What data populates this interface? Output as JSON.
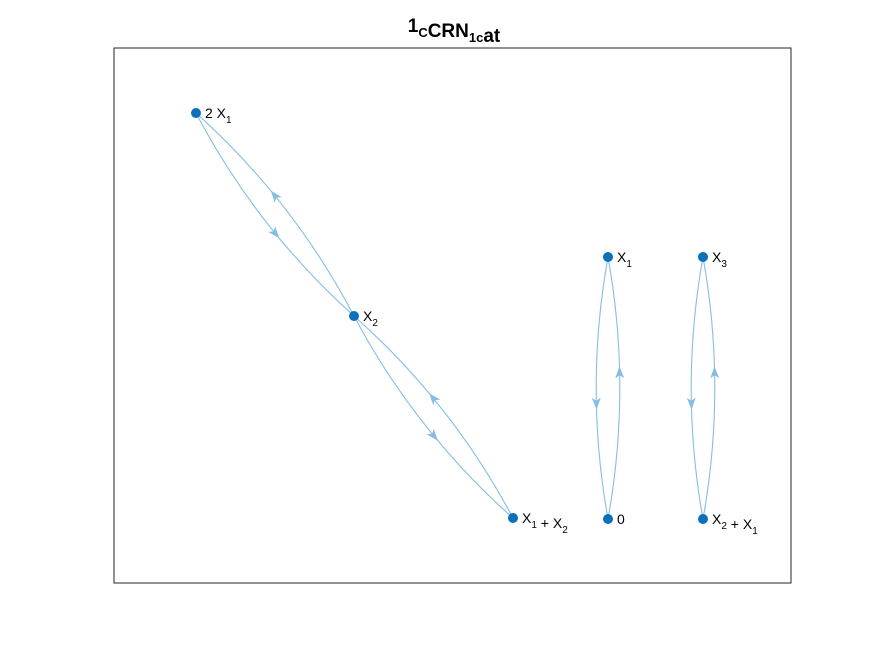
{
  "title": {
    "parts": [
      {
        "text": "1",
        "sub": false
      },
      {
        "text": "C",
        "sub": true
      },
      {
        "text": "CRN",
        "sub": false
      },
      {
        "text": "1c",
        "sub": true
      },
      {
        "text": "at",
        "sub": false
      }
    ]
  },
  "colors": {
    "node": "#0b6fba",
    "edge": "#86bde3",
    "frame": "#262626"
  },
  "nodes": [
    {
      "id": "2X1",
      "label": [
        {
          "text": "2 X",
          "sub": false
        },
        {
          "text": "1",
          "sub": true
        }
      ]
    },
    {
      "id": "X2",
      "label": [
        {
          "text": "X",
          "sub": false
        },
        {
          "text": "2",
          "sub": true
        }
      ]
    },
    {
      "id": "X1X2",
      "label": [
        {
          "text": "X",
          "sub": false
        },
        {
          "text": "1",
          "sub": true
        },
        {
          "text": " + X",
          "sub": false
        },
        {
          "text": "2",
          "sub": true
        }
      ]
    },
    {
      "id": "X1",
      "label": [
        {
          "text": "X",
          "sub": false
        },
        {
          "text": "1",
          "sub": true
        }
      ]
    },
    {
      "id": "0",
      "label": [
        {
          "text": "0",
          "sub": false
        }
      ]
    },
    {
      "id": "X3",
      "label": [
        {
          "text": "X",
          "sub": false
        },
        {
          "text": "3",
          "sub": true
        }
      ]
    },
    {
      "id": "X2X1",
      "label": [
        {
          "text": "X",
          "sub": false
        },
        {
          "text": "2",
          "sub": true
        },
        {
          "text": " + X",
          "sub": false
        },
        {
          "text": "1",
          "sub": true
        }
      ]
    }
  ],
  "edges": [
    {
      "from": "2X1",
      "to": "X2"
    },
    {
      "from": "X2",
      "to": "2X1"
    },
    {
      "from": "X2",
      "to": "X1X2"
    },
    {
      "from": "X1X2",
      "to": "X2"
    },
    {
      "from": "X1",
      "to": "0"
    },
    {
      "from": "0",
      "to": "X1"
    },
    {
      "from": "X3",
      "to": "X2X1"
    },
    {
      "from": "X2X1",
      "to": "X3"
    }
  ]
}
